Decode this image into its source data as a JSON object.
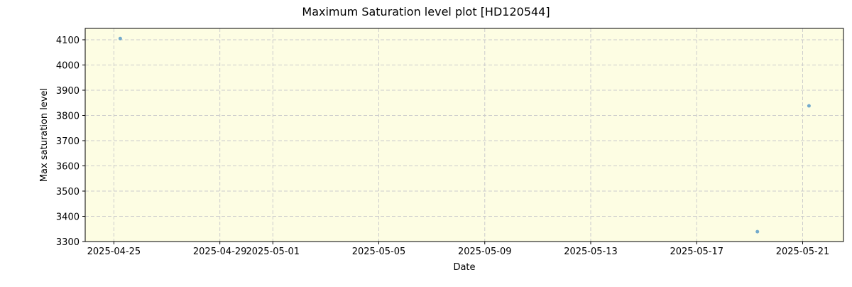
{
  "chart_data": {
    "type": "scatter",
    "title": "Maximum Saturation level plot [HD120544]",
    "xlabel": "Date",
    "ylabel": "Max saturation level",
    "xlim": [
      "2025-04-23T22:00",
      "2025-05-22T13:00"
    ],
    "ylim": [
      3300,
      4145
    ],
    "x_ticks": [
      "2025-04-25",
      "2025-04-29",
      "2025-05-01",
      "2025-05-05",
      "2025-05-09",
      "2025-05-13",
      "2025-05-17",
      "2025-05-21"
    ],
    "y_ticks": [
      3300,
      3400,
      3500,
      3600,
      3700,
      3800,
      3900,
      4000,
      4100
    ],
    "grid": true,
    "background": "#fdfde3",
    "point_color": "#5b9bc8",
    "points": [
      {
        "x": "2025-04-25T05:45",
        "y": 4105
      },
      {
        "x": "2025-05-19T07:00",
        "y": 3339
      },
      {
        "x": "2025-05-21T05:45",
        "y": 3838
      }
    ]
  }
}
